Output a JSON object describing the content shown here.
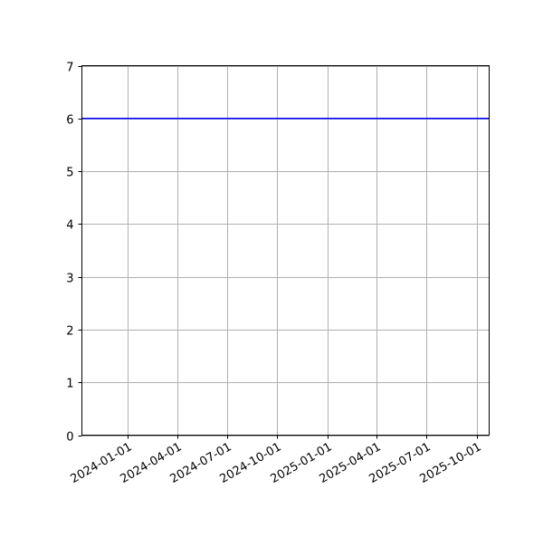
{
  "chart_data": {
    "type": "line",
    "title": "",
    "xlabel": "",
    "ylabel": "",
    "x_type": "date",
    "xlim": [
      "2023-10-10",
      "2025-10-24"
    ],
    "ylim": [
      0,
      7
    ],
    "grid": true,
    "legend": "none",
    "x_ticks": [
      "2024-01-01",
      "2024-04-01",
      "2024-07-01",
      "2024-10-01",
      "2025-01-01",
      "2025-04-01",
      "2025-07-01",
      "2025-10-01"
    ],
    "y_ticks": [
      "0",
      "1",
      "2",
      "3",
      "4",
      "5",
      "6",
      "7"
    ],
    "series": [
      {
        "x": [
          "2023-10-10",
          "2025-10-24"
        ],
        "y": [
          6,
          6
        ],
        "color": "#0000ff"
      }
    ]
  }
}
